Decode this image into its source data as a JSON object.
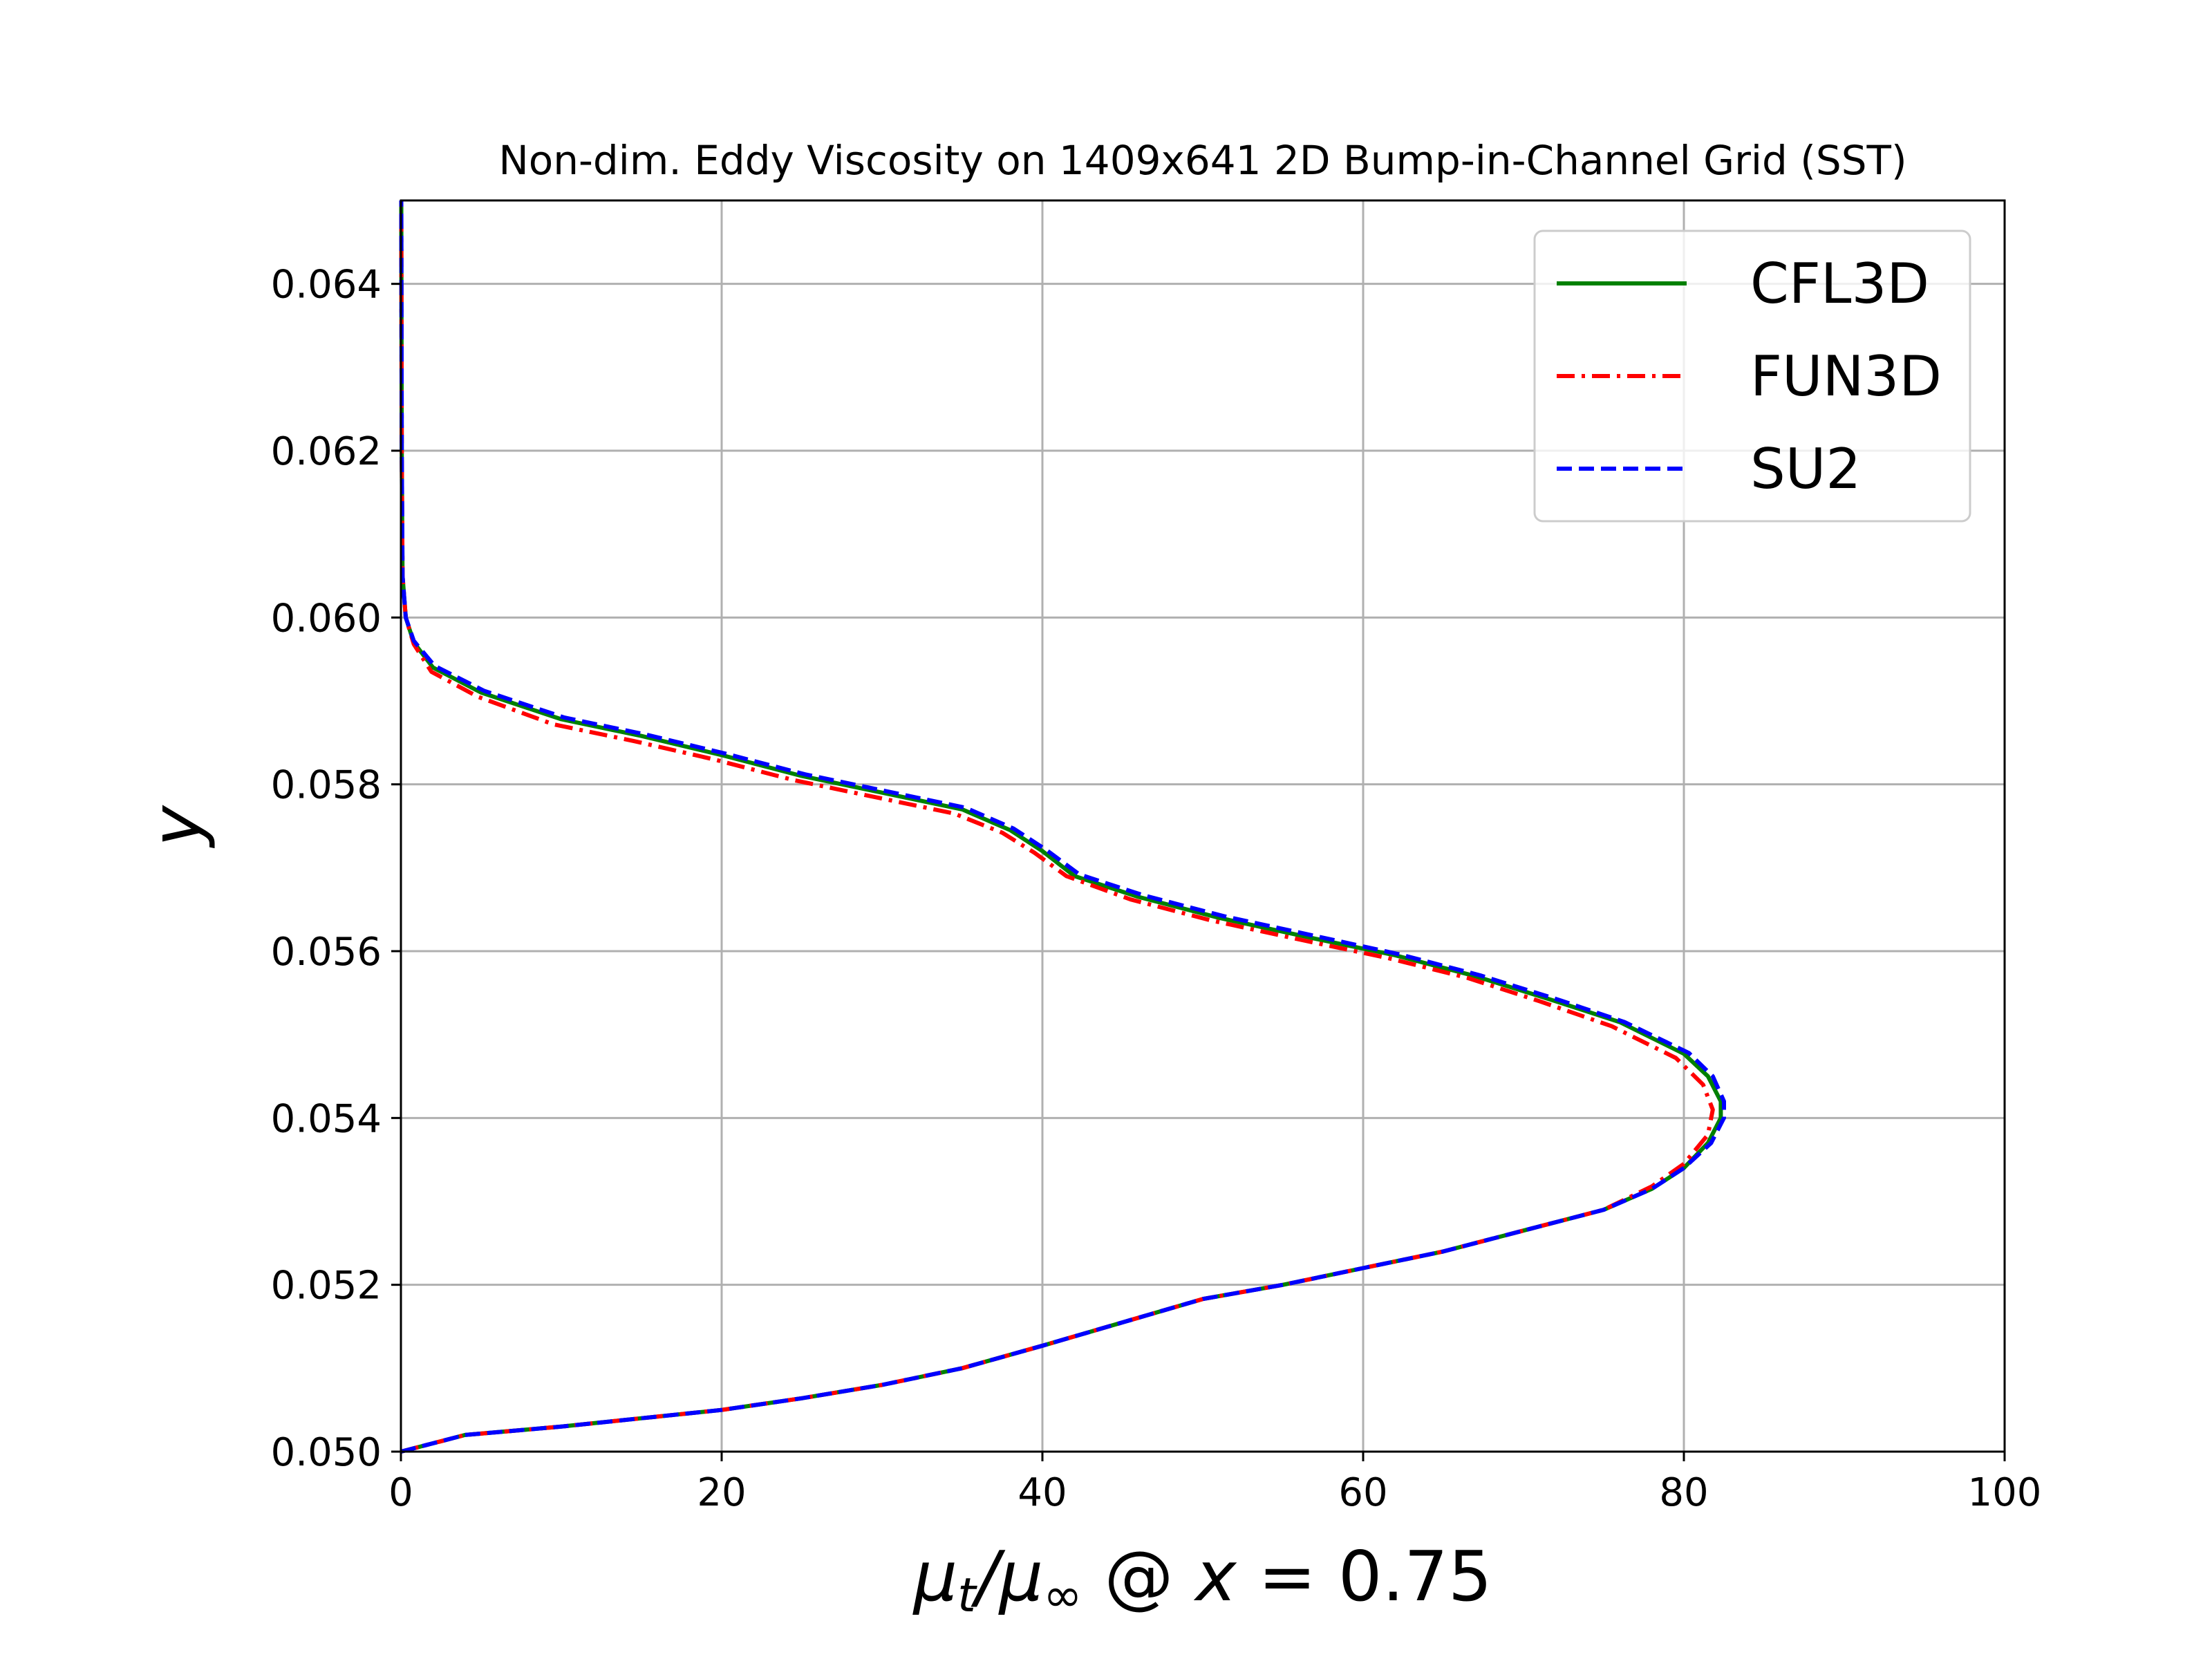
{
  "chart_data": {
    "type": "line",
    "title": "Non-dim. Eddy Viscosity on 1409x641 2D Bump-in-Channel Grid (SST)",
    "xlabel": {
      "base": "μ",
      "sub1": "t",
      "slash": "/μ",
      "sub2": "∞",
      "at": " @ ",
      "var": "x",
      "eq": " = 0.75"
    },
    "ylabel": "y",
    "xlim": [
      0,
      100
    ],
    "ylim": [
      0.05,
      0.065
    ],
    "xticks": [
      0,
      20,
      40,
      60,
      80,
      100
    ],
    "xtick_labels": [
      "0",
      "20",
      "40",
      "60",
      "80",
      "100"
    ],
    "yticks": [
      0.05,
      0.052,
      0.054,
      0.056,
      0.058,
      0.06,
      0.062,
      0.064
    ],
    "ytick_labels": [
      "0.050",
      "0.052",
      "0.054",
      "0.056",
      "0.058",
      "0.060",
      "0.062",
      "0.064"
    ],
    "grid": true,
    "legend_position": "top-right",
    "series": [
      {
        "name": "CFL3D",
        "color": "#008000",
        "style": "solid",
        "points": [
          [
            0.0,
            0.05
          ],
          [
            4,
            0.0502
          ],
          [
            10,
            0.0503
          ],
          [
            15,
            0.0504
          ],
          [
            20,
            0.0505
          ],
          [
            25,
            0.05064
          ],
          [
            30,
            0.0508
          ],
          [
            35,
            0.051
          ],
          [
            40,
            0.05127
          ],
          [
            45,
            0.05155
          ],
          [
            50,
            0.05183
          ],
          [
            55,
            0.052
          ],
          [
            60,
            0.0522
          ],
          [
            65,
            0.0524
          ],
          [
            70,
            0.05265
          ],
          [
            75,
            0.0529
          ],
          [
            78,
            0.05315
          ],
          [
            80,
            0.0534
          ],
          [
            81.5,
            0.0537
          ],
          [
            82.3,
            0.054
          ],
          [
            82.3,
            0.0542
          ],
          [
            81.5,
            0.0545
          ],
          [
            80,
            0.05477
          ],
          [
            76,
            0.05515
          ],
          [
            72,
            0.0554
          ],
          [
            67,
            0.0557
          ],
          [
            62,
            0.05595
          ],
          [
            57,
            0.05615
          ],
          [
            51,
            0.0564
          ],
          [
            46,
            0.05665
          ],
          [
            42,
            0.0569
          ],
          [
            40,
            0.0572
          ],
          [
            38,
            0.05745
          ],
          [
            35,
            0.0577
          ],
          [
            30,
            0.0579
          ],
          [
            25,
            0.0581
          ],
          [
            20,
            0.05835
          ],
          [
            15,
            0.05858
          ],
          [
            10,
            0.05878
          ],
          [
            5,
            0.0591
          ],
          [
            2,
            0.0594
          ],
          [
            0.8,
            0.0597
          ],
          [
            0.3,
            0.06
          ],
          [
            0.1,
            0.0605
          ],
          [
            0.05,
            0.062
          ],
          [
            0.02,
            0.065
          ]
        ]
      },
      {
        "name": "FUN3D",
        "color": "#ff0000",
        "style": "dashdot",
        "points": [
          [
            0.0,
            0.05
          ],
          [
            4,
            0.0502
          ],
          [
            10,
            0.0503
          ],
          [
            15,
            0.0504
          ],
          [
            20,
            0.0505
          ],
          [
            25,
            0.05064
          ],
          [
            30,
            0.0508
          ],
          [
            35,
            0.051
          ],
          [
            40,
            0.05127
          ],
          [
            45,
            0.05155
          ],
          [
            50,
            0.05183
          ],
          [
            55,
            0.052
          ],
          [
            60,
            0.0522
          ],
          [
            65,
            0.0524
          ],
          [
            70,
            0.05265
          ],
          [
            75,
            0.0529
          ],
          [
            78,
            0.05318
          ],
          [
            80,
            0.05345
          ],
          [
            81.5,
            0.0538
          ],
          [
            81.8,
            0.0541
          ],
          [
            81.2,
            0.0544
          ],
          [
            79.5,
            0.05472
          ],
          [
            75.5,
            0.0551
          ],
          [
            71,
            0.0554
          ],
          [
            66.5,
            0.05568
          ],
          [
            61.5,
            0.05592
          ],
          [
            56.5,
            0.05612
          ],
          [
            50.5,
            0.05637
          ],
          [
            45.5,
            0.05662
          ],
          [
            41.5,
            0.0569
          ],
          [
            39.5,
            0.05718
          ],
          [
            37.5,
            0.05742
          ],
          [
            34.5,
            0.05765
          ],
          [
            29.5,
            0.05785
          ],
          [
            24.5,
            0.05805
          ],
          [
            19.5,
            0.0583
          ],
          [
            14.5,
            0.05852
          ],
          [
            9.5,
            0.05872
          ],
          [
            4.8,
            0.05905
          ],
          [
            1.9,
            0.05935
          ],
          [
            0.8,
            0.05968
          ],
          [
            0.3,
            0.06
          ],
          [
            0.1,
            0.0605
          ],
          [
            0.05,
            0.062
          ],
          [
            0.02,
            0.065
          ]
        ]
      },
      {
        "name": "SU2",
        "color": "#0000ff",
        "style": "dashed",
        "points": [
          [
            0.0,
            0.05
          ],
          [
            4,
            0.0502
          ],
          [
            10,
            0.0503
          ],
          [
            15,
            0.0504
          ],
          [
            20,
            0.0505
          ],
          [
            25,
            0.05064
          ],
          [
            30,
            0.0508
          ],
          [
            35,
            0.051
          ],
          [
            40,
            0.05127
          ],
          [
            45,
            0.05155
          ],
          [
            50,
            0.05183
          ],
          [
            55,
            0.052
          ],
          [
            60,
            0.0522
          ],
          [
            65,
            0.0524
          ],
          [
            70,
            0.05265
          ],
          [
            75,
            0.0529
          ],
          [
            78,
            0.05315
          ],
          [
            80,
            0.0534
          ],
          [
            81.7,
            0.0537
          ],
          [
            82.5,
            0.054
          ],
          [
            82.5,
            0.0542
          ],
          [
            81.8,
            0.0545
          ],
          [
            80.3,
            0.05478
          ],
          [
            76.3,
            0.05515
          ],
          [
            72.3,
            0.05541
          ],
          [
            67.3,
            0.05571
          ],
          [
            62.3,
            0.05596
          ],
          [
            57.3,
            0.05617
          ],
          [
            51.3,
            0.05642
          ],
          [
            46.3,
            0.05667
          ],
          [
            42.3,
            0.05692
          ],
          [
            40.2,
            0.05722
          ],
          [
            38.2,
            0.05747
          ],
          [
            35.2,
            0.05772
          ],
          [
            30.2,
            0.05792
          ],
          [
            25.2,
            0.05812
          ],
          [
            20.2,
            0.05837
          ],
          [
            15.2,
            0.0586
          ],
          [
            10.2,
            0.0588
          ],
          [
            5.2,
            0.05912
          ],
          [
            2.1,
            0.05942
          ],
          [
            0.8,
            0.05972
          ],
          [
            0.3,
            0.06
          ],
          [
            0.1,
            0.0605
          ],
          [
            0.05,
            0.062
          ],
          [
            0.02,
            0.065
          ]
        ]
      }
    ]
  }
}
